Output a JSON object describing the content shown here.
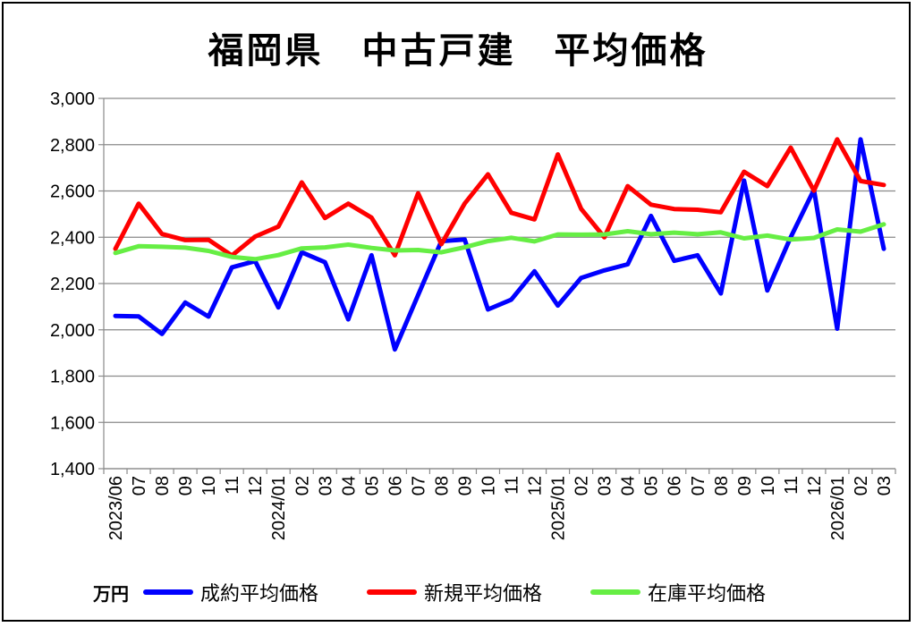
{
  "title": "福岡県　中古戸建　平均価格",
  "unit_label": "万円",
  "chart_data": {
    "type": "line",
    "title": "福岡県　中古戸建　平均価格",
    "ylabel": "万円",
    "ylim": [
      1400,
      3000
    ],
    "yticks": [
      1400,
      1600,
      1800,
      2000,
      2200,
      2400,
      2600,
      2800,
      3000
    ],
    "ytick_labels": [
      "1,400",
      "1,600",
      "1,800",
      "2,000",
      "2,200",
      "2,400",
      "2,600",
      "2,800",
      "3,000"
    ],
    "categories": [
      "2023/06",
      "07",
      "08",
      "09",
      "10",
      "11",
      "12",
      "2024/01",
      "02",
      "03",
      "04",
      "05",
      "06",
      "07",
      "08",
      "09",
      "10",
      "11",
      "12",
      "2025/01",
      "02",
      "03",
      "04",
      "05",
      "06",
      "07",
      "08",
      "09",
      "10",
      "11",
      "12",
      "2026/01",
      "02",
      "03"
    ],
    "grid": true,
    "legend_position": "bottom",
    "series": [
      {
        "name": "成約平均価格",
        "color": "#0000ff",
        "values": [
          2060,
          2058,
          1982,
          2118,
          2057,
          2270,
          2297,
          2097,
          2335,
          2292,
          2045,
          2322,
          1915,
          2150,
          2383,
          2390,
          2088,
          2130,
          2253,
          2105,
          2224,
          2257,
          2283,
          2492,
          2298,
          2322,
          2157,
          2645,
          2170,
          2400,
          2605,
          2005,
          2823,
          2350
        ]
      },
      {
        "name": "新規平均価格",
        "color": "#ff0000",
        "values": [
          2350,
          2545,
          2414,
          2388,
          2389,
          2321,
          2403,
          2446,
          2637,
          2483,
          2545,
          2485,
          2322,
          2590,
          2370,
          2546,
          2672,
          2506,
          2477,
          2758,
          2523,
          2400,
          2621,
          2541,
          2522,
          2519,
          2508,
          2683,
          2621,
          2787,
          2601,
          2823,
          2643,
          2626
        ]
      },
      {
        "name": "在庫平均価格",
        "color": "#66ee44",
        "values": [
          2332,
          2361,
          2359,
          2355,
          2341,
          2315,
          2305,
          2323,
          2352,
          2356,
          2368,
          2354,
          2343,
          2345,
          2335,
          2357,
          2383,
          2398,
          2382,
          2412,
          2411,
          2412,
          2426,
          2413,
          2420,
          2413,
          2421,
          2395,
          2407,
          2390,
          2397,
          2434,
          2424,
          2456
        ]
      }
    ]
  }
}
